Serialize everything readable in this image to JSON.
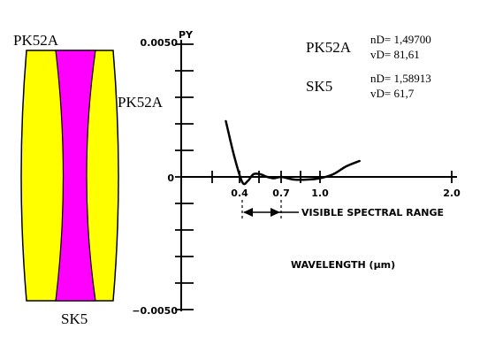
{
  "lens": {
    "top_label": "PK52A",
    "right_label": "PK52A",
    "bottom_label": "SK5",
    "crown_color": "#ffff00",
    "flint_color": "#ff00ff"
  },
  "glass_data": [
    {
      "name": "PK52A",
      "nd": "nD= 1,49700",
      "vd": "vD= 81,61"
    },
    {
      "name": "SK5",
      "nd": "nD= 1,58913",
      "vd": "vD= 61,7"
    }
  ],
  "chart_data": {
    "type": "line",
    "y_axis_label": "PY",
    "y_ticks": [
      "0.0050",
      "0",
      "−0.0050"
    ],
    "ylim": [
      -0.005,
      0.005
    ],
    "x_ticks": [
      "0.4",
      "0.7",
      "1.0",
      "2.0"
    ],
    "x_axis_label": "WAVELENGTH (μm)",
    "range_annotation": "VISIBLE SPECTRAL RANGE",
    "series": [
      {
        "x": [
          0.35,
          0.38,
          0.42,
          0.46,
          0.5,
          0.55,
          0.6,
          0.65,
          0.7,
          0.8,
          0.9,
          1.0,
          1.1,
          1.2,
          1.3
        ],
        "y": [
          0.0021,
          0.0008,
          -0.0002,
          -0.00015,
          0.0001,
          0.0001,
          0.0,
          -5e-05,
          0.0,
          -0.0001,
          -0.0001,
          -5e-05,
          0.0001,
          0.0004,
          0.0006
        ]
      }
    ]
  }
}
